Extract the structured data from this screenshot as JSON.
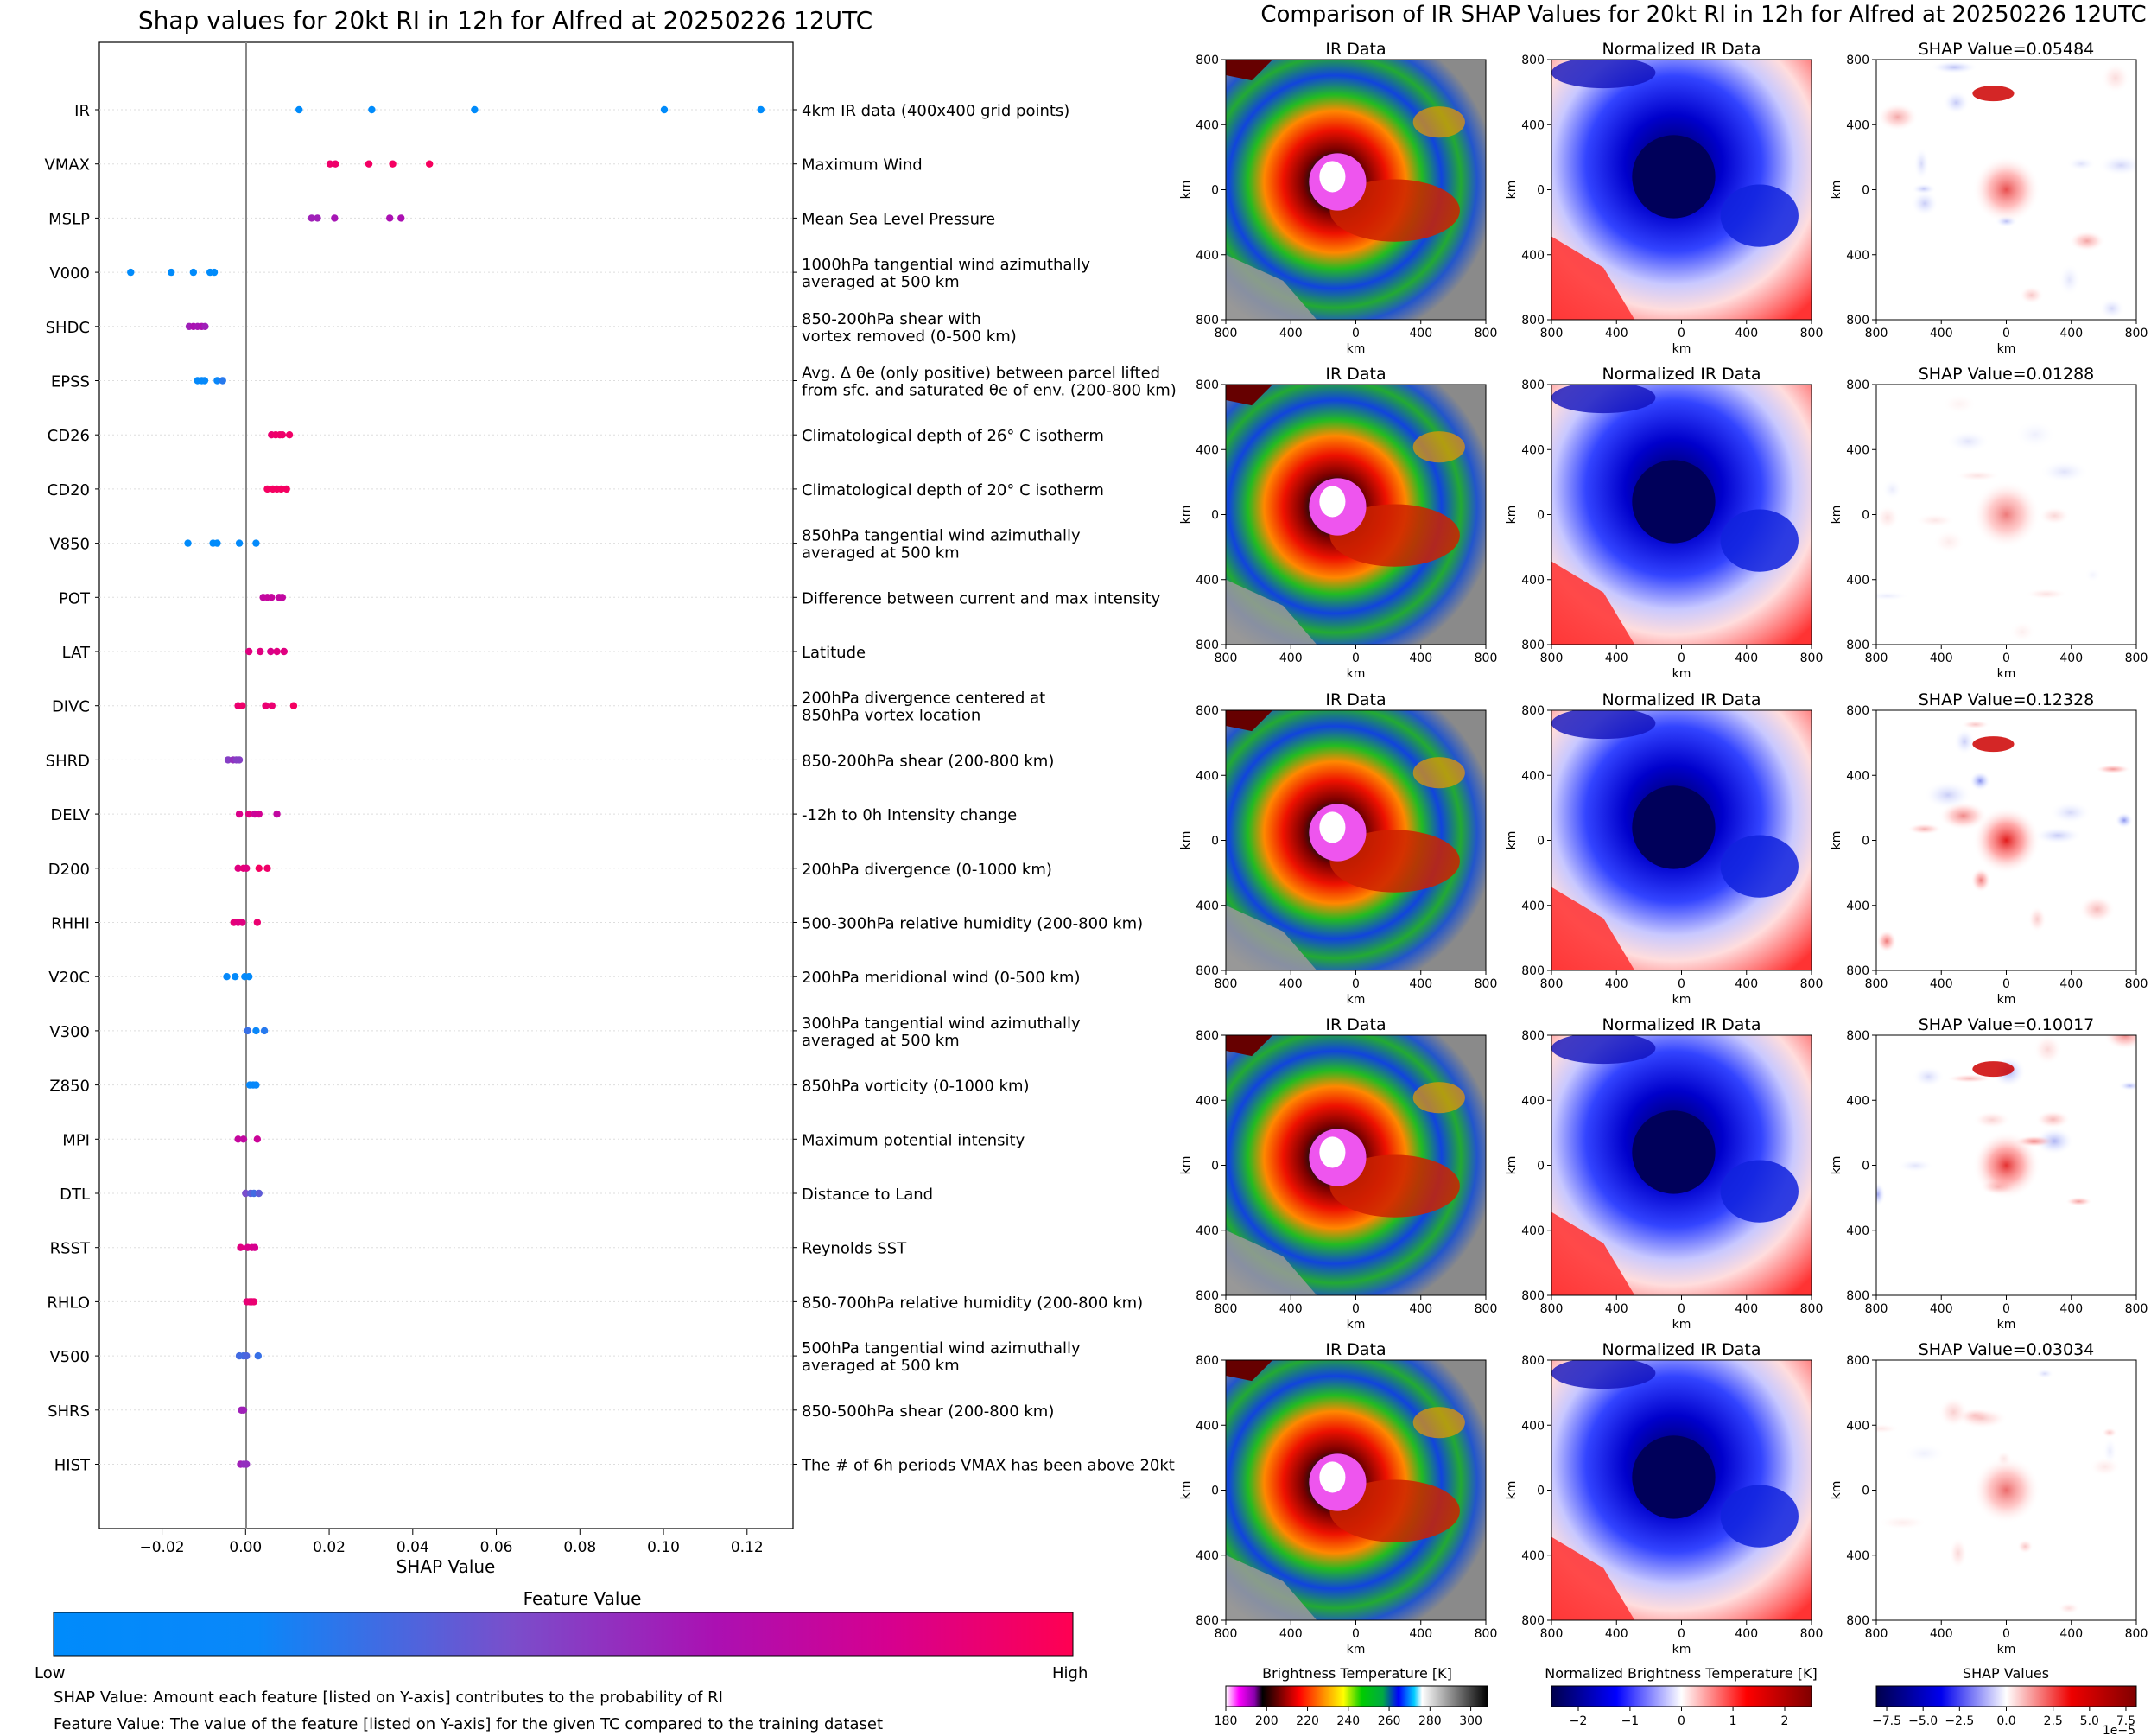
{
  "left_panel": {
    "chart_data": {
      "type": "scatter",
      "title": "Shap values for 20kt RI in 12h for Alfred at 20250226 12UTC",
      "xlabel": "SHAP Value",
      "xlim": [
        -0.035,
        0.131
      ],
      "xticks": [
        -0.02,
        0.0,
        0.02,
        0.04,
        0.06,
        0.08,
        0.1,
        0.12
      ],
      "xtick_labels": [
        "−0.02",
        "0.00",
        "0.02",
        "0.04",
        "0.06",
        "0.08",
        "0.10",
        "0.12"
      ],
      "features": [
        {
          "name": "IR",
          "description": "4km IR data (400x400 grid points)",
          "points": [
            [
              0.0128,
              0.0
            ],
            [
              0.0302,
              0.0
            ],
            [
              0.0548,
              0.0
            ],
            [
              0.1002,
              0.0
            ],
            [
              0.1233,
              0.0
            ]
          ]
        },
        {
          "name": "VMAX",
          "description": "Maximum Wind",
          "points": [
            [
              0.0202,
              0.92
            ],
            [
              0.0215,
              0.92
            ],
            [
              0.0295,
              0.94
            ],
            [
              0.0352,
              0.95
            ],
            [
              0.044,
              0.96
            ]
          ]
        },
        {
          "name": "MSLP",
          "description": "Mean Sea Level Pressure",
          "points": [
            [
              0.0158,
              0.55
            ],
            [
              0.0172,
              0.55
            ],
            [
              0.0213,
              0.58
            ],
            [
              0.0345,
              0.6
            ],
            [
              0.0372,
              0.6
            ]
          ]
        },
        {
          "name": "V000",
          "description": "1000hPa tangential wind azimuthally\naveraged at 500 km",
          "points": [
            [
              -0.0275,
              0.0
            ],
            [
              -0.0178,
              0.0
            ],
            [
              -0.0125,
              0.0
            ],
            [
              -0.0085,
              0.0
            ],
            [
              -0.0075,
              0.0
            ]
          ]
        },
        {
          "name": "SHDC",
          "description": "850-200hPa shear with\nvortex removed (0-500 km)",
          "points": [
            [
              -0.0135,
              0.55
            ],
            [
              -0.0125,
              0.6
            ],
            [
              -0.0115,
              0.58
            ],
            [
              -0.0105,
              0.6
            ],
            [
              -0.0097,
              0.55
            ]
          ]
        },
        {
          "name": "EPSS",
          "description": "Avg. Δ θe (only positive) between parcel lifted\nfrom sfc. and saturated θe of env. (200-800 km)",
          "points": [
            [
              -0.0115,
              0.1
            ],
            [
              -0.0105,
              0.1
            ],
            [
              -0.0098,
              0.12
            ],
            [
              -0.0068,
              0.2
            ],
            [
              -0.0055,
              0.25
            ]
          ]
        },
        {
          "name": "CD26",
          "description": "Climatological depth of 26° C isotherm",
          "points": [
            [
              0.0062,
              0.9
            ],
            [
              0.0072,
              0.92
            ],
            [
              0.0082,
              0.92
            ],
            [
              0.0088,
              0.92
            ],
            [
              0.0105,
              0.93
            ]
          ]
        },
        {
          "name": "CD20",
          "description": "Climatological depth of 20° C isotherm",
          "points": [
            [
              0.0052,
              0.95
            ],
            [
              0.0065,
              0.95
            ],
            [
              0.0075,
              0.95
            ],
            [
              0.0085,
              0.95
            ],
            [
              0.0098,
              0.95
            ]
          ]
        },
        {
          "name": "V850",
          "description": "850hPa tangential wind azimuthally\naveraged at 500 km",
          "points": [
            [
              -0.0138,
              0.0
            ],
            [
              -0.0078,
              0.02
            ],
            [
              -0.0068,
              0.02
            ],
            [
              -0.0015,
              0.05
            ],
            [
              0.0025,
              0.05
            ]
          ]
        },
        {
          "name": "POT",
          "description": "Difference between current and max intensity",
          "points": [
            [
              0.0042,
              0.7
            ],
            [
              0.0052,
              0.72
            ],
            [
              0.0062,
              0.72
            ],
            [
              0.008,
              0.7
            ],
            [
              0.0088,
              0.7
            ]
          ]
        },
        {
          "name": "LAT",
          "description": "Latitude",
          "points": [
            [
              0.0008,
              0.85
            ],
            [
              0.0035,
              0.85
            ],
            [
              0.006,
              0.82
            ],
            [
              0.0075,
              0.85
            ],
            [
              0.0092,
              0.85
            ]
          ]
        },
        {
          "name": "DIVC",
          "description": "200hPa divergence centered at\n850hPa vortex location",
          "points": [
            [
              -0.0018,
              0.9
            ],
            [
              -0.0008,
              0.92
            ],
            [
              0.0048,
              0.9
            ],
            [
              0.0063,
              0.9
            ],
            [
              0.0115,
              0.95
            ]
          ]
        },
        {
          "name": "SHRD",
          "description": "850-200hPa shear (200-800 km)",
          "points": [
            [
              -0.0042,
              0.45
            ],
            [
              -0.003,
              0.5
            ],
            [
              -0.0022,
              0.45
            ],
            [
              -0.0015,
              0.45
            ]
          ]
        },
        {
          "name": "DELV",
          "description": "-12h to 0h Intensity change",
          "points": [
            [
              -0.0015,
              0.82
            ],
            [
              0.0008,
              0.85
            ],
            [
              0.0022,
              0.75
            ],
            [
              0.0032,
              0.78
            ],
            [
              0.0075,
              0.7
            ]
          ]
        },
        {
          "name": "D200",
          "description": "200hPa divergence (0-1000 km)",
          "points": [
            [
              -0.0018,
              0.85
            ],
            [
              -0.0005,
              0.88
            ],
            [
              0.0002,
              0.85
            ],
            [
              0.0032,
              0.95
            ],
            [
              0.0052,
              0.92
            ]
          ]
        },
        {
          "name": "RHHI",
          "description": "500-300hPa relative humidity (200-800 km)",
          "points": [
            [
              -0.0028,
              0.88
            ],
            [
              -0.0018,
              0.85
            ],
            [
              -0.0008,
              0.85
            ],
            [
              0.0028,
              0.9
            ]
          ]
        },
        {
          "name": "V20C",
          "description": "200hPa meridional wind (0-500 km)",
          "points": [
            [
              -0.0045,
              0.1
            ],
            [
              -0.0025,
              0.05
            ],
            [
              -0.0002,
              0.1
            ],
            [
              0.0008,
              0.05
            ]
          ]
        },
        {
          "name": "V300",
          "description": "300hPa tangential wind azimuthally\naveraged at 500 km",
          "points": [
            [
              0.0005,
              0.28
            ],
            [
              0.0025,
              0.2
            ],
            [
              0.0045,
              0.25
            ]
          ]
        },
        {
          "name": "Z850",
          "description": "850hPa vorticity (0-1000 km)",
          "points": [
            [
              0.001,
              0.15
            ],
            [
              0.0018,
              0.12
            ],
            [
              0.0025,
              0.15
            ]
          ]
        },
        {
          "name": "MPI",
          "description": "Maximum potential intensity",
          "points": [
            [
              -0.0018,
              0.72
            ],
            [
              -0.0005,
              0.7
            ],
            [
              0.0028,
              0.75
            ]
          ]
        },
        {
          "name": "DTL",
          "description": "Distance to Land",
          "points": [
            [
              0.0,
              0.4
            ],
            [
              0.0012,
              0.35
            ],
            [
              0.002,
              0.3
            ],
            [
              0.0032,
              0.35
            ]
          ]
        },
        {
          "name": "RSST",
          "description": "Reynolds SST",
          "points": [
            [
              -0.0012,
              0.85
            ],
            [
              0.0005,
              0.82
            ],
            [
              0.0015,
              0.82
            ],
            [
              0.0022,
              0.8
            ]
          ]
        },
        {
          "name": "RHLO",
          "description": "850-700hPa relative humidity (200-800 km)",
          "points": [
            [
              0.0003,
              0.88
            ],
            [
              0.001,
              0.9
            ],
            [
              0.0015,
              0.88
            ],
            [
              0.002,
              0.9
            ]
          ]
        },
        {
          "name": "V500",
          "description": "500hPa tangential wind azimuthally\naveraged at 500 km",
          "points": [
            [
              -0.0015,
              0.3
            ],
            [
              -0.0005,
              0.3
            ],
            [
              0.0002,
              0.32
            ],
            [
              0.003,
              0.28
            ]
          ]
        },
        {
          "name": "SHRS",
          "description": "850-500hPa shear (200-800 km)",
          "points": [
            [
              -0.001,
              0.55
            ],
            [
              -0.0005,
              0.55
            ]
          ]
        },
        {
          "name": "HIST",
          "description": "The # of 6h periods VMAX has been above 20kt",
          "points": [
            [
              -0.0012,
              0.55
            ],
            [
              -0.0004,
              0.5
            ],
            [
              0.0002,
              0.5
            ]
          ]
        }
      ]
    },
    "colorbar": {
      "title": "Feature Value",
      "low_label": "Low",
      "high_label": "High",
      "colors": [
        "#008bfb",
        "#0a87f9",
        "#7a4ecb",
        "#ab10b2",
        "#d6008f",
        "#ff0052"
      ]
    },
    "footnotes": {
      "shap_note": "SHAP Value: Amount each feature [listed on Y-axis] contributes to the probability of RI",
      "feature_note": "Feature Value: The value of the feature [listed on Y-axis] for the given TC compared to the training dataset"
    }
  },
  "right_panel": {
    "title": "Comparison of IR SHAP Values for 20kt RI in 12h for Alfred at 20250226 12UTC",
    "column_titles": {
      "ir": "IR Data",
      "norm": "Normalized IR Data"
    },
    "shap_rows": [
      {
        "label": "SHAP Value=0.05484",
        "value": 0.05484
      },
      {
        "label": "SHAP Value=0.01288",
        "value": 0.01288
      },
      {
        "label": "SHAP Value=0.12328",
        "value": 0.12328
      },
      {
        "label": "SHAP Value=0.10017",
        "value": 0.10017
      },
      {
        "label": "SHAP Value=0.03034",
        "value": 0.03034
      }
    ],
    "axis_label": "km",
    "xticks": [
      "800",
      "400",
      "0",
      "400",
      "800"
    ],
    "yticks": [
      "800",
      "400",
      "0",
      "400",
      "800"
    ],
    "colorbars": {
      "bt": {
        "label": "Brightness Temperature [K]",
        "ticks": [
          "180",
          "200",
          "220",
          "240",
          "260",
          "280",
          "300"
        ]
      },
      "norm": {
        "label": "Normalized Brightness Temperature [K]",
        "ticks": [
          "−2",
          "−1",
          "0",
          "1",
          "2"
        ]
      },
      "shap": {
        "label": "SHAP Values",
        "ticks": [
          "−7.5",
          "−5.0",
          "−2.5",
          "0.0",
          "2.5",
          "5.0",
          "7.5"
        ],
        "offset": "1e−5"
      }
    }
  }
}
